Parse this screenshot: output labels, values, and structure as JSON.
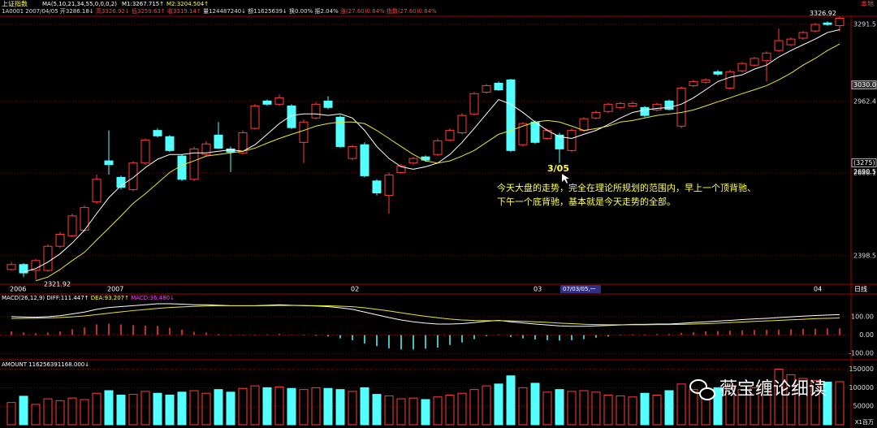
{
  "header": {
    "name": "上证指数",
    "indicator": "MA(5,10,21,34,55,0,0,0,2)",
    "m1": "M1:3267.715↑",
    "m2": "M2:3204.504↑",
    "source": "本地",
    "quote": [
      "1A0001",
      "2007/04/05",
      "开3286.18↓",
      "高3326.92↓",
      "低3259.63↑",
      "收3319.14↑",
      "量124487240↓",
      "额11625639↓",
      "换0.00%",
      "振2.04%",
      "涨(27.60)0.84%",
      "指数(27.60)0.84%"
    ]
  },
  "chart_data": [
    {
      "type": "candlestick",
      "log": true,
      "ylim": [
        2307,
        3328.3
      ],
      "yticks": [
        3291.5,
        2962.4,
        2686.1,
        2398.5
      ],
      "grid": true,
      "up_color": "#ff3c3c",
      "down_color": "#54ffff",
      "categories": [
        "2006",
        null,
        null,
        null,
        null,
        null,
        null,
        null,
        "2007",
        null,
        null,
        null,
        null,
        null,
        null,
        null,
        null,
        null,
        null,
        null,
        null,
        null,
        null,
        null,
        null,
        null,
        null,
        null,
        "02",
        null,
        null,
        null,
        null,
        null,
        null,
        null,
        null,
        null,
        null,
        null,
        null,
        null,
        null,
        "03",
        null,
        null,
        null,
        null,
        null,
        null,
        null,
        null,
        null,
        null,
        null,
        null,
        null,
        null,
        null,
        null,
        null,
        null,
        null,
        null,
        null,
        null,
        "04",
        null,
        null
      ],
      "open": [
        2354,
        2370,
        2351,
        2351,
        2430,
        2465,
        2484,
        2582,
        2731,
        2670,
        2626,
        2723,
        2847,
        2823,
        2749,
        2663,
        2755,
        2829,
        2776,
        2761,
        2855,
        2964,
        2951,
        2944,
        2801,
        2896,
        2964,
        2899,
        2740,
        2792,
        2657,
        2605,
        2688,
        2723,
        2746,
        2755,
        2810,
        2838,
        2912,
        3000,
        3037,
        3051,
        2792,
        2880,
        2816,
        2829,
        2770,
        2847,
        2896,
        2922,
        2938,
        2944,
        2938,
        2928,
        2964,
        2864,
        3027,
        3041,
        3085,
        3017,
        3089,
        3113,
        3132,
        3176,
        3201,
        3230,
        3262,
        3298,
        3286.18
      ],
      "high": [
        2378,
        2375,
        2388,
        2436,
        2478,
        2541,
        2570,
        2680,
        2847,
        2676,
        2730,
        2816,
        2855,
        2829,
        2755,
        2785,
        2805,
        2880,
        2785,
        2847,
        2951,
        2970,
        2990,
        2951,
        2890,
        2960,
        2983,
        2906,
        2792,
        2801,
        2663,
        2688,
        2720,
        2746,
        2752,
        2816,
        2855,
        2915,
        3000,
        3034,
        3044,
        3055,
        2880,
        2886,
        2855,
        2838,
        2855,
        2899,
        2925,
        2957,
        2960,
        2962,
        2944,
        2957,
        2970,
        3024,
        3051,
        3058,
        3092,
        3092,
        3126,
        3148,
        3172,
        3273,
        3233,
        3262,
        3298,
        3305,
        3326.92
      ],
      "low": [
        2350,
        2330,
        2321.92,
        2346,
        2425,
        2460,
        2478,
        2575,
        2680,
        2626,
        2620,
        2717,
        2820,
        2764,
        2657,
        2657,
        2749,
        2776,
        2690,
        2755,
        2850,
        2945,
        2945,
        2852,
        2723,
        2890,
        2931,
        2779,
        2734,
        2670,
        2605,
        2541,
        2682,
        2717,
        2728,
        2749,
        2804,
        2832,
        2906,
        2994,
        3005,
        2764,
        2785,
        2795,
        2810,
        2723,
        2764,
        2841,
        2890,
        2915,
        2931,
        2938,
        2899,
        2922,
        2925,
        2855,
        3020,
        3034,
        3068,
        3010,
        3082,
        3106,
        3044,
        3170,
        3195,
        3223,
        3255,
        3285,
        3259.63
      ],
      "close": [
        2370,
        2343,
        2383,
        2430,
        2470,
        2533,
        2562,
        2663,
        2717,
        2634,
        2723,
        2810,
        2826,
        2770,
        2663,
        2776,
        2795,
        2779,
        2764,
        2838,
        2944,
        2951,
        2977,
        2858,
        2880,
        2951,
        2938,
        2785,
        2785,
        2676,
        2614,
        2679,
        2712,
        2740,
        2734,
        2807,
        2847,
        2906,
        2994,
        3027,
        3010,
        2770,
        2874,
        2801,
        2847,
        2776,
        2847,
        2893,
        2918,
        2951,
        2954,
        2954,
        2906,
        2951,
        2931,
        3017,
        3044,
        3051,
        3075,
        3085,
        3120,
        3142,
        3165,
        3219,
        3226,
        3255,
        3291,
        3291,
        3319.14
      ],
      "series": [
        {
          "color": "#ffffff",
          "values": [
            null,
            2346,
            2357,
            2378,
            2405,
            2441,
            2484,
            2541,
            2597,
            2640,
            2669,
            2706,
            2737,
            2755,
            2755,
            2761,
            2761,
            2767,
            2773,
            2767,
            2792,
            2832,
            2874,
            2906,
            2912,
            2912,
            2906,
            2912,
            2896,
            2847,
            2785,
            2740,
            2709,
            2700,
            2709,
            2723,
            2755,
            2801,
            2855,
            2912,
            2970,
            2951,
            2918,
            2880,
            2847,
            2823,
            2816,
            2832,
            2847,
            2870,
            2896,
            2918,
            2928,
            2934,
            2938,
            2951,
            2977,
            3010,
            3044,
            3062,
            3072,
            3096,
            3113,
            3148,
            3176,
            3201,
            3226,
            3255,
            3267.715
          ]
        },
        {
          "color": "#e8e830",
          "values": [
            null,
            null,
            2318,
            2330,
            2354,
            2383,
            2410,
            2451,
            2491,
            2533,
            2577,
            2611,
            2649,
            2688,
            2715,
            2731,
            2749,
            2755,
            2761,
            2767,
            2779,
            2798,
            2816,
            2832,
            2847,
            2864,
            2874,
            2880,
            2880,
            2874,
            2847,
            2816,
            2785,
            2755,
            2731,
            2723,
            2731,
            2749,
            2770,
            2801,
            2832,
            2847,
            2864,
            2880,
            2886,
            2880,
            2864,
            2847,
            2854,
            2864,
            2880,
            2886,
            2896,
            2906,
            2912,
            2918,
            2928,
            2944,
            2961,
            2977,
            2994,
            3010,
            3027,
            3051,
            3079,
            3113,
            3142,
            3176,
            3204.504
          ]
        }
      ],
      "price_cursor": {
        "value": 3030,
        "label": "3030.0"
      },
      "cursor_count": "(3275)",
      "cursor_price": 2690.51,
      "cursor_date": "07/03/05,一",
      "period": "日线",
      "annotation_date": "3/05",
      "annotation": [
        "今天大盘的走势，完全在理论所规划的范围内，早上一个顶背驰、",
        "下午一个底背驰，基本就是今天走势的全部。"
      ]
    },
    {
      "type": "macd",
      "legend": [
        "MACD(26,12,9)",
        "DIFF:111.447↑",
        "DEA:93.207↑",
        "MACD:36.480↓"
      ],
      "ylim": [
        -130,
        210
      ],
      "yticks": [
        {
          "value": 100,
          "label": "100.00"
        },
        {
          "value": 0,
          "label": "0.00"
        },
        {
          "value": -100,
          "label": "-100.00"
        }
      ],
      "diff": {
        "color": "#ffffff",
        "values": [
          100,
          98,
          97,
          100,
          105,
          115,
          125,
          140,
          150,
          155,
          160,
          165,
          170,
          170,
          168,
          165,
          165,
          162,
          160,
          160,
          160,
          162,
          165,
          162,
          160,
          158,
          155,
          148,
          140,
          125,
          110,
          95,
          82,
          72,
          65,
          60,
          60,
          62,
          68,
          75,
          80,
          72,
          66,
          60,
          55,
          50,
          48,
          48,
          50,
          52,
          55,
          58,
          58,
          60,
          60,
          64,
          68,
          72,
          76,
          80,
          84,
          88,
          91,
          95,
          99,
          103,
          106,
          109,
          111.447
        ]
      },
      "dea": {
        "color": "#e8e830",
        "values": [
          90,
          91,
          92,
          93,
          95,
          99,
          104,
          111,
          119,
          126,
          133,
          139,
          145,
          150,
          153,
          156,
          158,
          159,
          159,
          159,
          159,
          160,
          161,
          161,
          161,
          160,
          159,
          157,
          154,
          148,
          140,
          131,
          121,
          111,
          102,
          94,
          87,
          82,
          79,
          78,
          78,
          77,
          75,
          72,
          69,
          65,
          62,
          59,
          57,
          56,
          56,
          56,
          56,
          57,
          57,
          58,
          60,
          62,
          65,
          68,
          71,
          74,
          77,
          80,
          83,
          86,
          89,
          91,
          93.207
        ]
      },
      "histogram": [
        20,
        14,
        10,
        14,
        20,
        32,
        42,
        58,
        62,
        58,
        54,
        52,
        50,
        40,
        30,
        18,
        14,
        6,
        2,
        2,
        2,
        4,
        8,
        2,
        -2,
        -4,
        -8,
        -18,
        -28,
        -46,
        -60,
        -72,
        -78,
        -78,
        -74,
        -68,
        -54,
        -40,
        -22,
        -6,
        4,
        -10,
        -18,
        -24,
        -28,
        -30,
        -28,
        -22,
        -14,
        -8,
        -2,
        4,
        4,
        6,
        6,
        12,
        16,
        20,
        22,
        24,
        26,
        28,
        28,
        30,
        32,
        34,
        34,
        36,
        36.48
      ]
    },
    {
      "type": "bar",
      "title": "AMOUNT 116256391168.000↓",
      "unit": "X1百万",
      "ylim": [
        0,
        160000
      ],
      "yticks": [
        50000,
        100000,
        150000
      ],
      "values": [
        60000,
        77000,
        55000,
        70000,
        65000,
        72000,
        68000,
        85000,
        92000,
        80000,
        82000,
        90000,
        85000,
        80000,
        88000,
        92000,
        85000,
        95000,
        88000,
        98000,
        105000,
        100000,
        102000,
        98000,
        95000,
        100000,
        98000,
        95000,
        90000,
        100000,
        82000,
        78000,
        70000,
        72000,
        68000,
        75000,
        80000,
        85000,
        95000,
        105000,
        110000,
        132000,
        100000,
        112000,
        88000,
        95000,
        90000,
        92000,
        88000,
        80000,
        78000,
        75000,
        85000,
        80000,
        92000,
        110000,
        95000,
        90000,
        100000,
        105000,
        95000,
        100000,
        110000,
        150000,
        135000,
        125000,
        120000,
        115000,
        116256.391168
      ]
    }
  ],
  "watermark": "薇宝缠论细读"
}
